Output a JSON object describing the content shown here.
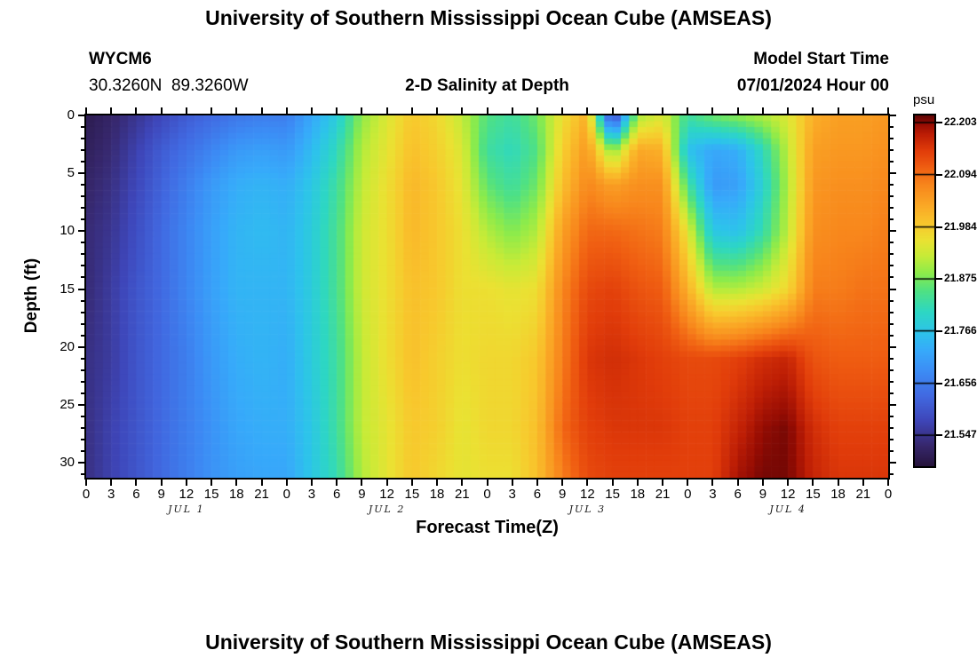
{
  "header": {
    "title": "University of Southern Mississippi Ocean Cube (AMSEAS)",
    "station_id": "WYCM6",
    "station_coords": "30.3260N  89.3260W",
    "subtitle": "2-D Salinity at Depth",
    "model_start_label": "Model Start Time",
    "model_start_value": "07/01/2024 Hour 00"
  },
  "footer": {
    "next_panel_title": "University of Southern Mississippi Ocean Cube (AMSEAS)"
  },
  "chart_data": {
    "type": "heatmap",
    "title": "2-D Salinity at Depth",
    "xlabel": "Forecast Time(Z)",
    "ylabel": "Depth (ft)",
    "colorbar_label": "psu",
    "colormap": "rainbow-dark-ends",
    "colormap_stops": [
      [
        0.0,
        "#26143c"
      ],
      [
        0.06,
        "#37286e"
      ],
      [
        0.13,
        "#3e46b9"
      ],
      [
        0.2,
        "#4169e1"
      ],
      [
        0.27,
        "#3c8cf5"
      ],
      [
        0.33,
        "#37aafa"
      ],
      [
        0.38,
        "#2dc3eb"
      ],
      [
        0.44,
        "#2dd7c3"
      ],
      [
        0.5,
        "#50e182"
      ],
      [
        0.55,
        "#8ceb4b"
      ],
      [
        0.6,
        "#c8eb37"
      ],
      [
        0.645,
        "#ebe132"
      ],
      [
        0.69,
        "#f8c82d"
      ],
      [
        0.74,
        "#faaa26"
      ],
      [
        0.8,
        "#f8871c"
      ],
      [
        0.85,
        "#f05f12"
      ],
      [
        0.9,
        "#e13c0a"
      ],
      [
        0.945,
        "#be1e05"
      ],
      [
        0.975,
        "#960c03"
      ],
      [
        1.0,
        "#5f0505"
      ]
    ],
    "vmin": 21.482,
    "vmax": 22.218,
    "colorbar_ticks": [
      "22.203",
      "22.094",
      "21.984",
      "21.875",
      "21.766",
      "21.656",
      "21.547"
    ],
    "x_hours": [
      0,
      3,
      6,
      9,
      12,
      15,
      18,
      21,
      24,
      27,
      30,
      33,
      36,
      39,
      42,
      45,
      48,
      51,
      54,
      57,
      60,
      63,
      66,
      69,
      72,
      75,
      78,
      81,
      84,
      87,
      90,
      93,
      96
    ],
    "x_tick_labels": [
      "0",
      "3",
      "6",
      "9",
      "12",
      "15",
      "18",
      "21",
      "0",
      "3",
      "6",
      "9",
      "12",
      "15",
      "18",
      "21",
      "0",
      "3",
      "6",
      "9",
      "12",
      "15",
      "18",
      "21",
      "0",
      "3",
      "6",
      "9",
      "12",
      "15",
      "18",
      "21",
      "0"
    ],
    "day_labels": [
      "JUL 1",
      "JUL 2",
      "JUL 3",
      "JUL 4"
    ],
    "day_center_hours": [
      12,
      36,
      60,
      84
    ],
    "y_tick_depths": [
      0,
      5,
      10,
      15,
      20,
      25,
      30
    ],
    "y_minor_step_ft": 1,
    "depth_max_ft": 31.3,
    "depths_ft": [
      0,
      3,
      6,
      10,
      15,
      21,
      27,
      31
    ],
    "salinity_psu": [
      [
        21.5,
        21.51,
        21.52,
        21.53,
        21.53,
        21.54,
        21.54,
        21.54
      ],
      [
        21.52,
        21.53,
        21.54,
        21.55,
        21.56,
        21.56,
        21.57,
        21.57
      ],
      [
        21.55,
        21.57,
        21.58,
        21.59,
        21.6,
        21.6,
        21.6,
        21.6
      ],
      [
        21.58,
        21.61,
        21.62,
        21.63,
        21.63,
        21.63,
        21.63,
        21.63
      ],
      [
        21.61,
        21.64,
        21.66,
        21.67,
        21.67,
        21.66,
        21.66,
        21.66
      ],
      [
        21.63,
        21.67,
        21.7,
        21.71,
        21.71,
        21.7,
        21.69,
        21.69
      ],
      [
        21.65,
        21.7,
        21.73,
        21.74,
        21.74,
        21.73,
        21.72,
        21.71
      ],
      [
        21.66,
        21.71,
        21.74,
        21.75,
        21.74,
        21.74,
        21.73,
        21.72
      ],
      [
        21.66,
        21.7,
        21.73,
        21.74,
        21.74,
        21.73,
        21.73,
        21.72
      ],
      [
        21.72,
        21.75,
        21.77,
        21.78,
        21.78,
        21.78,
        21.77,
        21.77
      ],
      [
        21.78,
        21.81,
        21.83,
        21.84,
        21.84,
        21.83,
        21.83,
        21.82
      ],
      [
        21.89,
        21.91,
        21.92,
        21.93,
        21.93,
        21.92,
        21.92,
        21.91
      ],
      [
        21.94,
        21.95,
        21.96,
        21.96,
        21.96,
        21.96,
        21.95,
        21.95
      ],
      [
        21.99,
        22.0,
        22.01,
        22.01,
        22.0,
        22.0,
        21.99,
        21.99
      ],
      [
        21.97,
        21.98,
        21.99,
        21.99,
        21.99,
        21.98,
        21.98,
        21.97
      ],
      [
        21.92,
        21.94,
        21.95,
        21.96,
        21.96,
        21.96,
        21.95,
        21.95
      ],
      [
        21.85,
        21.83,
        21.86,
        21.91,
        21.96,
        21.97,
        21.97,
        21.96
      ],
      [
        21.83,
        21.81,
        21.83,
        21.88,
        21.95,
        21.97,
        21.97,
        21.96
      ],
      [
        21.87,
        21.85,
        21.87,
        21.91,
        21.96,
        21.99,
        22.0,
        22.0
      ],
      [
        21.96,
        21.98,
        22.0,
        22.04,
        22.07,
        22.08,
        22.1,
        22.08
      ],
      [
        22.02,
        22.05,
        22.07,
        22.1,
        22.13,
        22.15,
        22.14,
        22.13
      ],
      [
        21.55,
        21.88,
        22.04,
        22.1,
        22.14,
        22.16,
        22.15,
        22.14
      ],
      [
        21.9,
        22.03,
        22.06,
        22.09,
        22.12,
        22.15,
        22.15,
        22.14
      ],
      [
        21.94,
        22.02,
        22.06,
        22.08,
        22.11,
        22.14,
        22.15,
        22.14
      ],
      [
        21.83,
        21.76,
        21.84,
        21.95,
        22.02,
        22.13,
        22.14,
        22.14
      ],
      [
        21.87,
        21.72,
        21.7,
        21.77,
        21.91,
        22.13,
        22.14,
        22.14
      ],
      [
        21.89,
        21.73,
        21.71,
        21.76,
        21.91,
        22.14,
        22.17,
        22.19
      ],
      [
        21.91,
        21.81,
        21.79,
        21.82,
        21.93,
        22.16,
        22.2,
        22.21
      ],
      [
        21.94,
        21.92,
        21.91,
        21.92,
        21.97,
        22.17,
        22.21,
        22.21
      ],
      [
        22.02,
        22.04,
        22.05,
        22.06,
        22.08,
        22.12,
        22.16,
        22.17
      ],
      [
        22.04,
        22.05,
        22.06,
        22.07,
        22.08,
        22.11,
        22.14,
        22.15
      ],
      [
        22.04,
        22.05,
        22.06,
        22.07,
        22.09,
        22.11,
        22.14,
        22.15
      ],
      [
        22.05,
        22.06,
        22.07,
        22.08,
        22.09,
        22.11,
        22.14,
        22.15
      ]
    ]
  }
}
